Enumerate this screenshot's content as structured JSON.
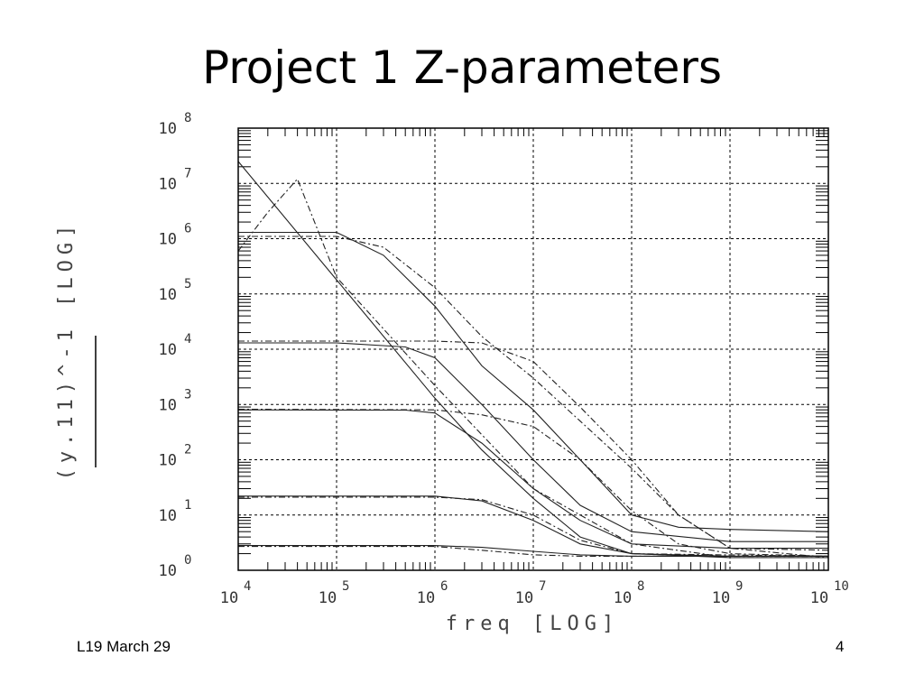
{
  "slide": {
    "title": "Project 1 Z-parameters",
    "footer_left": "L19 March 29",
    "page_number": "4"
  },
  "chart_data": {
    "type": "line",
    "title": "",
    "xlabel": "freq   [LOG]",
    "ylabel": "(y.11)^-1  [LOG]",
    "x_scale": "log",
    "y_scale": "log",
    "xlim": [
      10000,
      10000000000
    ],
    "ylim": [
      1,
      100000000
    ],
    "grid": true,
    "x_ticks": [
      {
        "base": "10",
        "exp": "4"
      },
      {
        "base": "10",
        "exp": "5"
      },
      {
        "base": "10",
        "exp": "6"
      },
      {
        "base": "10",
        "exp": "7"
      },
      {
        "base": "10",
        "exp": "8"
      },
      {
        "base": "10",
        "exp": "9"
      },
      {
        "base": "10",
        "exp": "10"
      }
    ],
    "y_ticks": [
      {
        "base": "10",
        "exp": "0"
      },
      {
        "base": "10",
        "exp": "1"
      },
      {
        "base": "10",
        "exp": "2"
      },
      {
        "base": "10",
        "exp": "3"
      },
      {
        "base": "10",
        "exp": "4"
      },
      {
        "base": "10",
        "exp": "5"
      },
      {
        "base": "10",
        "exp": "6"
      },
      {
        "base": "10",
        "exp": "7"
      },
      {
        "base": "10",
        "exp": "8"
      }
    ],
    "series": [
      {
        "style": "solid",
        "points": [
          [
            10000,
            25000000
          ],
          [
            100000,
            180000
          ],
          [
            1000000,
            1300
          ],
          [
            3000000,
            150
          ],
          [
            10000000,
            20
          ],
          [
            30000000,
            4
          ],
          [
            100000000,
            2
          ],
          [
            1000000000,
            1.7
          ],
          [
            10000000000,
            1.7
          ]
        ]
      },
      {
        "style": "solid",
        "points": [
          [
            10000,
            1300000
          ],
          [
            100000,
            1300000
          ],
          [
            300000,
            500000
          ],
          [
            1000000,
            60000
          ],
          [
            3000000,
            5000
          ],
          [
            10000000,
            800
          ],
          [
            30000000,
            100
          ],
          [
            100000000,
            10
          ],
          [
            300000000,
            6
          ],
          [
            1000000000,
            5.5
          ],
          [
            10000000000,
            5
          ]
        ]
      },
      {
        "style": "dashdot",
        "points": [
          [
            10000,
            600000
          ],
          [
            20000,
            3000000
          ],
          [
            40000,
            12000000
          ],
          [
            100000,
            200000
          ],
          [
            1000000,
            2200
          ],
          [
            10000000,
            30
          ],
          [
            100000000,
            3
          ],
          [
            1000000000,
            1.7
          ],
          [
            10000000000,
            1.7
          ]
        ]
      },
      {
        "style": "dashdot",
        "points": [
          [
            10000,
            1100000
          ],
          [
            100000,
            1100000
          ],
          [
            300000,
            700000
          ],
          [
            1000000,
            130000
          ],
          [
            3000000,
            17000
          ],
          [
            10000000,
            3000
          ],
          [
            30000000,
            500
          ],
          [
            100000000,
            70
          ],
          [
            300000000,
            10
          ],
          [
            1000000000,
            2.5
          ],
          [
            10000000000,
            1.7
          ]
        ]
      },
      {
        "style": "solid",
        "points": [
          [
            10000,
            13000
          ],
          [
            100000,
            13000
          ],
          [
            500000,
            11000
          ],
          [
            1000000,
            7000
          ],
          [
            3000000,
            1000
          ],
          [
            10000000,
            100
          ],
          [
            30000000,
            15
          ],
          [
            100000000,
            5
          ],
          [
            1000000000,
            3.3
          ],
          [
            10000000000,
            3.3
          ]
        ]
      },
      {
        "style": "dashdot",
        "points": [
          [
            10000,
            14000
          ],
          [
            1000000,
            14000
          ],
          [
            3000000,
            13000
          ],
          [
            10000000,
            6000
          ],
          [
            30000000,
            900
          ],
          [
            100000000,
            100
          ],
          [
            300000000,
            10
          ],
          [
            1000000000,
            2.5
          ],
          [
            10000000000,
            2.3
          ]
        ]
      },
      {
        "style": "solid",
        "points": [
          [
            10000,
            800
          ],
          [
            500000,
            790
          ],
          [
            1000000,
            700
          ],
          [
            3000000,
            200
          ],
          [
            10000000,
            30
          ],
          [
            30000000,
            8
          ],
          [
            100000000,
            3
          ],
          [
            1000000000,
            2.5
          ],
          [
            10000000000,
            2.5
          ]
        ]
      },
      {
        "style": "dashdot",
        "points": [
          [
            10000,
            820
          ],
          [
            1000000,
            800
          ],
          [
            3000000,
            650
          ],
          [
            10000000,
            400
          ],
          [
            30000000,
            100
          ],
          [
            100000000,
            12
          ],
          [
            300000000,
            3
          ],
          [
            1000000000,
            2
          ],
          [
            10000000000,
            1.8
          ]
        ]
      },
      {
        "style": "solid",
        "points": [
          [
            10000,
            22
          ],
          [
            1000000,
            22
          ],
          [
            3000000,
            18
          ],
          [
            10000000,
            8
          ],
          [
            30000000,
            3
          ],
          [
            100000000,
            2
          ],
          [
            1000000000,
            1.8
          ],
          [
            10000000000,
            1.8
          ]
        ]
      },
      {
        "style": "dashdot",
        "points": [
          [
            10000,
            21
          ],
          [
            1000000,
            21
          ],
          [
            3000000,
            19
          ],
          [
            10000000,
            10
          ],
          [
            30000000,
            3.5
          ],
          [
            100000000,
            2
          ],
          [
            10000000000,
            1.8
          ]
        ]
      },
      {
        "style": "solid",
        "points": [
          [
            10000,
            2.8
          ],
          [
            1000000,
            2.8
          ],
          [
            3000000,
            2.6
          ],
          [
            10000000,
            2.2
          ],
          [
            30000000,
            1.9
          ],
          [
            100000000,
            1.8
          ],
          [
            10000000000,
            1.8
          ]
        ]
      },
      {
        "style": "dashdot",
        "points": [
          [
            10000,
            2.7
          ],
          [
            1000000,
            2.7
          ],
          [
            3000000,
            2.3
          ],
          [
            10000000,
            1.9
          ],
          [
            30000000,
            1.8
          ],
          [
            10000000000,
            1.8
          ]
        ]
      }
    ]
  }
}
